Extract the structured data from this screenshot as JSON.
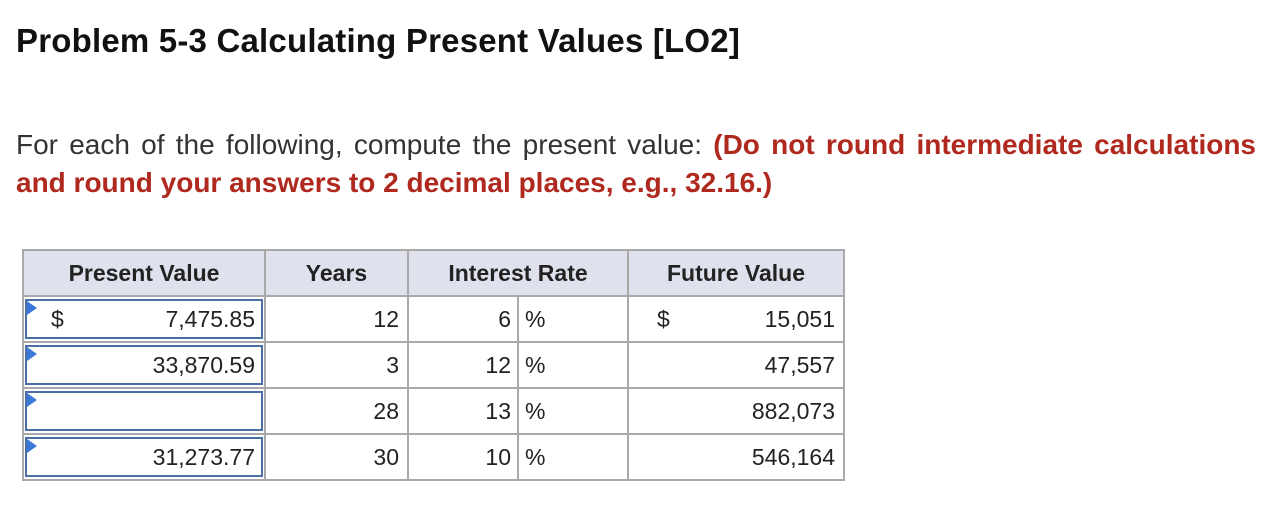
{
  "title": "Problem 5-3 Calculating Present Values [LO2]",
  "instructions": {
    "text": "For each of the following, compute the present value: ",
    "emphasis": "(Do not round intermediate calculations and round your answers to 2 decimal places, e.g., 32.16.)"
  },
  "table": {
    "headers": {
      "present_value": "Present Value",
      "years": "Years",
      "interest_rate": "Interest Rate",
      "future_value": "Future Value"
    },
    "rows": [
      {
        "pv_currency": "$",
        "pv_value": "7,475.85",
        "years": "12",
        "rate": "6",
        "pct": "%",
        "fv_currency": "$",
        "fv_value": "15,051"
      },
      {
        "pv_currency": "",
        "pv_value": "33,870.59",
        "years": "3",
        "rate": "12",
        "pct": "%",
        "fv_currency": "",
        "fv_value": "47,557"
      },
      {
        "pv_currency": "",
        "pv_value": "",
        "years": "28",
        "rate": "13",
        "pct": "%",
        "fv_currency": "",
        "fv_value": "882,073"
      },
      {
        "pv_currency": "",
        "pv_value": "31,273.77",
        "years": "30",
        "rate": "10",
        "pct": "%",
        "fv_currency": "",
        "fv_value": "546,164"
      }
    ]
  },
  "colors": {
    "emphasis": "#b0291f",
    "header_bg": "#dfe2ed",
    "input_border": "#4a6fa5",
    "flag": "#3a79d8"
  }
}
